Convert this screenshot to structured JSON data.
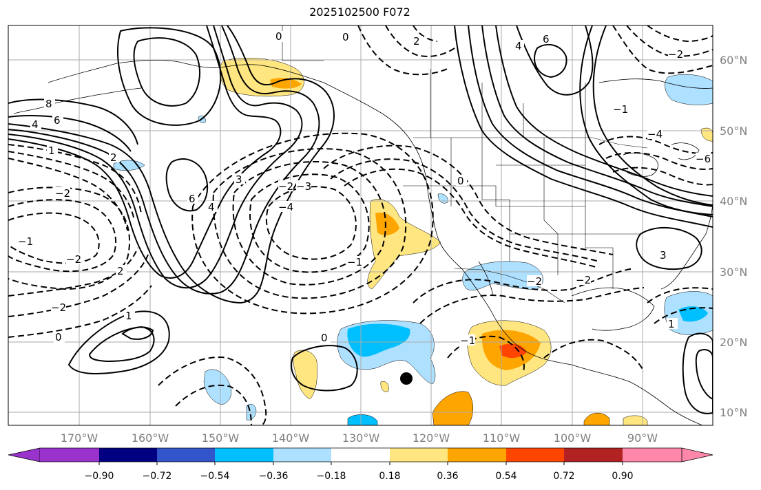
{
  "title": "2025102500 F072",
  "lat_labels": [
    "60°N",
    "50°N",
    "40°N",
    "30°N",
    "20°N",
    "10°N"
  ],
  "lon_labels": [
    "170°W",
    "160°W",
    "150°W",
    "140°W",
    "130°W",
    "120°W",
    "110°W",
    "100°W",
    "90°W"
  ],
  "colorbar": {
    "ticks": [
      "−0.90",
      "−0.72",
      "−0.54",
      "−0.36",
      "−0.18",
      "0.18",
      "0.36",
      "0.54",
      "0.72",
      "0.90"
    ],
    "colors": [
      "#9933cc",
      "#000080",
      "#3355cc",
      "#00bfff",
      "#aee0ff",
      "#ffffff",
      "#ffe680",
      "#ffa500",
      "#ff4500",
      "#b22222",
      "#ff88aa"
    ]
  },
  "contour_labels": [
    "0",
    "2",
    "4",
    "6",
    "8",
    "6",
    "4",
    "2",
    "1",
    "0",
    "−2",
    "−1",
    "−2",
    "−2",
    "0",
    "1",
    "2",
    "3",
    "4",
    "6",
    "−2",
    "−3",
    "−4",
    "−1",
    "0",
    "−1",
    "−2",
    "−2",
    "0",
    "3",
    "−4",
    "−6",
    "−2",
    "−1",
    "1"
  ],
  "map_colors": {
    "land_outline": "#000000",
    "grid": "#aaaaaa",
    "positive": "#ffe680",
    "strong_positive": "#ffa500",
    "stronger_positive": "#ff4500",
    "negative": "#aee0ff",
    "strong_negative": "#00bfff"
  }
}
